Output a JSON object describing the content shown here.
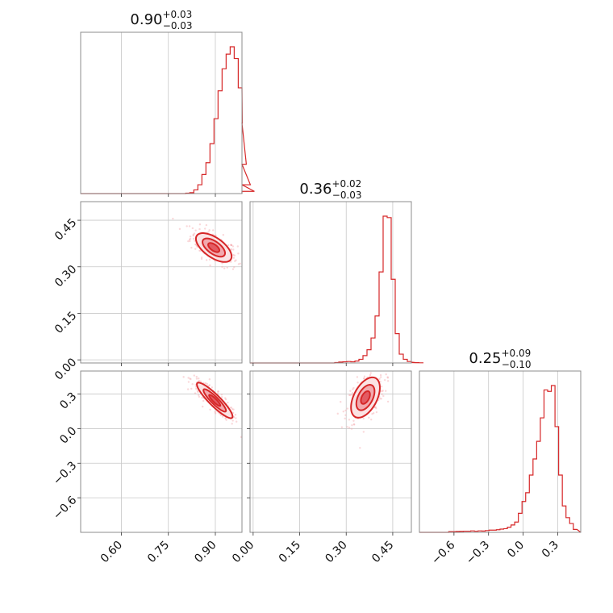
{
  "chart_data": {
    "type": "corner",
    "colors": {
      "main": "#d62728",
      "scatter": "#f4a9ad",
      "fill_outer": "#fbe3e4",
      "fill_mid": "#f2a9ae",
      "fill_inner": "#e35b63"
    },
    "grid": true,
    "parameters": [
      {
        "title_value": "0.90",
        "title_plus": "+0.03",
        "title_minus": "−0.03",
        "range": [
          0.47,
          0.985
        ],
        "ticks": [
          {
            "v": 0.6,
            "label": "0.60"
          },
          {
            "v": 0.75,
            "label": "0.75"
          },
          {
            "v": 0.9,
            "label": "0.90"
          }
        ],
        "hist": {
          "start": 0.47,
          "step": 0.0129,
          "counts": [
            0,
            0,
            0,
            0,
            0,
            0,
            0,
            0,
            0,
            0,
            0,
            0,
            0,
            0,
            0,
            0,
            0,
            0,
            0,
            0,
            0,
            0,
            0,
            0,
            0,
            0,
            0.3,
            0.6,
            2.5,
            6,
            13,
            21,
            34,
            51,
            70,
            85,
            95,
            100,
            92,
            72,
            48,
            20,
            6,
            1.5
          ]
        }
      },
      {
        "title_value": "0.36",
        "title_plus": "+0.02",
        "title_minus": "−0.03",
        "range": [
          -0.01,
          0.51
        ],
        "ticks": [
          {
            "v": 0.0,
            "label": "0.00"
          },
          {
            "v": 0.15,
            "label": "0.15"
          },
          {
            "v": 0.3,
            "label": "0.30"
          },
          {
            "v": 0.45,
            "label": "0.45"
          }
        ],
        "hist": {
          "start": -0.01,
          "step": 0.013,
          "counts": [
            0,
            0,
            0,
            0,
            0,
            0,
            0,
            0,
            0,
            0,
            0,
            0,
            0,
            0,
            0,
            0,
            0,
            0,
            0,
            0,
            0,
            0.3,
            0.6,
            0.8,
            1,
            0.8,
            1.3,
            2.5,
            5,
            9,
            17,
            32,
            62,
            100,
            99,
            57,
            20,
            6,
            2.5,
            1,
            0.6,
            0.3,
            0.2,
            0.1
          ]
        }
      },
      {
        "title_value": "0.25",
        "title_plus": "+0.09",
        "title_minus": "−0.10",
        "range": [
          -0.9,
          0.5
        ],
        "ticks": [
          {
            "v": -0.6,
            "label": "−0.6"
          },
          {
            "v": -0.3,
            "label": "−0.3"
          },
          {
            "v": 0.0,
            "label": "0.0"
          },
          {
            "v": 0.3,
            "label": "0.3"
          }
        ],
        "hist": {
          "start": -0.9,
          "step": 0.0318,
          "counts": [
            0,
            0,
            0,
            0,
            0,
            0,
            0,
            0,
            0.5,
            0.5,
            0.6,
            0.7,
            0.8,
            0.8,
            1,
            0.8,
            1,
            0.9,
            1.2,
            1.5,
            1.5,
            1.8,
            2.2,
            2.5,
            3.5,
            5,
            7,
            13,
            21,
            27,
            39,
            50,
            62,
            78,
            97,
            96,
            100,
            72,
            39,
            18,
            10,
            6,
            2
          ]
        }
      }
    ],
    "pairs": [
      {
        "x_param": 0,
        "y_param": 1,
        "center": [
          0.895,
          0.362
        ],
        "cov": [
          [
            0.0009,
            -0.00045
          ],
          [
            -0.00045,
            0.0006
          ]
        ],
        "sigma_levels": [
          0.6,
          1.2,
          1.9
        ]
      },
      {
        "x_param": 0,
        "y_param": 2,
        "center": [
          0.898,
          0.245
        ],
        "cov": [
          [
            0.0009,
            -0.0022
          ],
          [
            -0.0022,
            0.0066
          ]
        ],
        "sigma_levels": [
          0.6,
          1.2,
          1.9
        ]
      },
      {
        "x_param": 1,
        "y_param": 2,
        "center": [
          0.362,
          0.27
        ],
        "cov": [
          [
            0.0006,
            0.0011
          ],
          [
            0.0011,
            0.0085
          ]
        ],
        "sigma_levels": [
          0.6,
          1.2,
          1.9
        ]
      }
    ]
  }
}
